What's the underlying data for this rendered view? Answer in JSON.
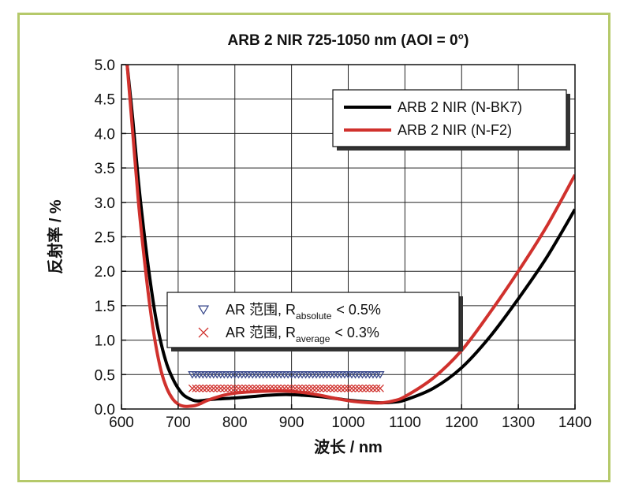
{
  "chart_data": {
    "type": "line",
    "title": "ARB 2 NIR 725-1050 nm (AOI = 0°)",
    "xlabel": "波长 / nm",
    "ylabel": "反射率 / %",
    "xlim": [
      600,
      1400
    ],
    "ylim": [
      0,
      5.0
    ],
    "grid": true,
    "x_ticks": [
      "600",
      "700",
      "800",
      "900",
      "1000",
      "1100",
      "1200",
      "1300",
      "1400"
    ],
    "y_ticks": [
      "0.0",
      "0.5",
      "1.0",
      "1.5",
      "2.0",
      "2.5",
      "3.0",
      "3.5",
      "4.0",
      "4.5",
      "5.0"
    ],
    "legend_position": "top-right",
    "series": [
      {
        "name": "ARB 2 NIR (N-BK7)",
        "color": "#000000",
        "x": [
          610,
          620,
          630,
          640,
          650,
          660,
          670,
          680,
          690,
          700,
          710,
          720,
          730,
          740,
          750,
          760,
          780,
          800,
          830,
          860,
          890,
          920,
          950,
          980,
          1010,
          1040,
          1060,
          1080,
          1100,
          1150,
          1200,
          1250,
          1300,
          1350,
          1400
        ],
        "y": [
          5.0,
          4.2,
          3.3,
          2.55,
          1.9,
          1.35,
          0.95,
          0.65,
          0.45,
          0.3,
          0.2,
          0.15,
          0.12,
          0.12,
          0.13,
          0.14,
          0.15,
          0.16,
          0.18,
          0.2,
          0.21,
          0.2,
          0.18,
          0.15,
          0.12,
          0.1,
          0.09,
          0.1,
          0.13,
          0.3,
          0.6,
          1.05,
          1.6,
          2.2,
          2.9
        ]
      },
      {
        "name": "ARB 2 NIR (N-F2)",
        "color": "#d0312d",
        "x": [
          610,
          620,
          630,
          640,
          650,
          660,
          670,
          680,
          690,
          700,
          710,
          720,
          730,
          740,
          750,
          760,
          780,
          800,
          830,
          860,
          890,
          920,
          950,
          980,
          1010,
          1040,
          1060,
          1080,
          1100,
          1150,
          1200,
          1250,
          1300,
          1350,
          1400
        ],
        "y": [
          5.0,
          4.0,
          3.0,
          2.2,
          1.5,
          0.95,
          0.55,
          0.3,
          0.15,
          0.07,
          0.04,
          0.04,
          0.05,
          0.08,
          0.12,
          0.15,
          0.2,
          0.23,
          0.25,
          0.26,
          0.26,
          0.24,
          0.2,
          0.15,
          0.11,
          0.09,
          0.09,
          0.12,
          0.18,
          0.45,
          0.85,
          1.4,
          2.0,
          2.65,
          3.4
        ]
      }
    ],
    "markers": [
      {
        "name": "AR 范围, R",
        "sub": "absolute",
        "suffix": "< 0.5%",
        "symbol": "triangle-down",
        "color": "#3b4a8c",
        "y": 0.5,
        "x_start": 725,
        "x_end": 1060
      },
      {
        "name": "AR 范围, R",
        "sub": "average",
        "suffix": "< 0.3%",
        "symbol": "cross",
        "color": "#d0312d",
        "y": 0.3,
        "x_start": 725,
        "x_end": 1060
      }
    ]
  }
}
